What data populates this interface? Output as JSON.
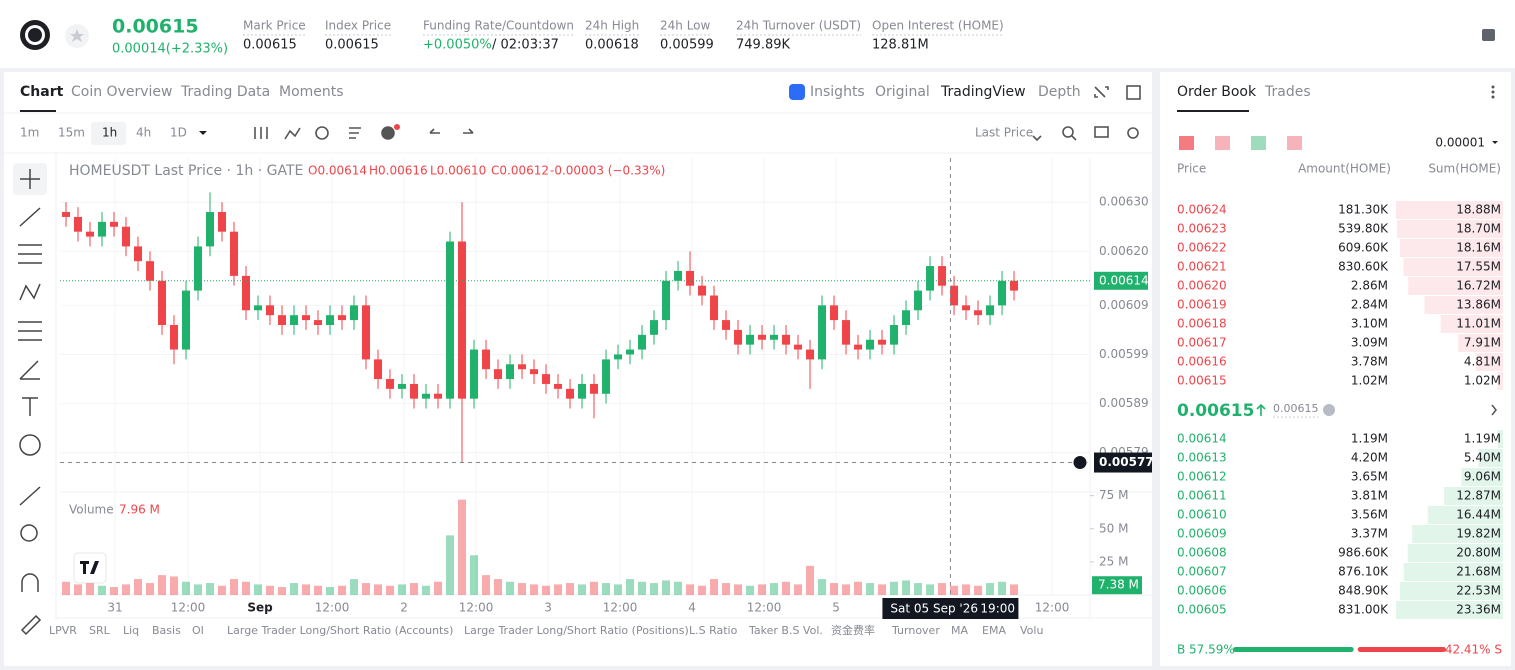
{
  "header": {
    "price": "0.00615",
    "change": "0.00014(+2.33%)",
    "stats": [
      {
        "label": "Mark Price",
        "value": "0.00615"
      },
      {
        "label": "Index Price",
        "value": "0.00615"
      },
      {
        "label": "Funding Rate/Countdown",
        "value": "+0.0050%",
        "extra": "/ 02:03:37"
      },
      {
        "label": "24h High",
        "value": "0.00618"
      },
      {
        "label": "24h Low",
        "value": "0.00599"
      },
      {
        "label": "24h Turnover (USDT)",
        "value": "749.89K"
      },
      {
        "label": "Open Interest (HOME)",
        "value": "128.81M"
      }
    ]
  },
  "tabs": [
    "Chart",
    "Coin Overview",
    "Trading Data",
    "Moments"
  ],
  "view_tabs": [
    "Insights",
    "Original",
    "TradingView",
    "Depth"
  ],
  "intervals": [
    "1m",
    "15m",
    "1h",
    "4h",
    "1D"
  ],
  "price_type": "Last Price",
  "indicators": [
    "LPVR",
    "SRL",
    "Liq",
    "Basis",
    "OI",
    "Large Trader Long/Short Ratio (Accounts)",
    "Large Trader Long/Short Ratio (Positions)",
    "L.S Ratio",
    "Taker B.S Vol.",
    "资金费率",
    "Turnover",
    "MA",
    "EMA",
    "Volu"
  ],
  "chart_data": {
    "type": "candlestick",
    "title": "HOMEUSDT Last Price · 1h · GATE",
    "legend": [
      "O0.00614",
      "H0.00616",
      "L0.00610",
      "C0.00612",
      "-0.00003 (−0.33%)"
    ],
    "up_color": "#20b26c",
    "down_color": "#ef454a",
    "grid": true,
    "xlim": [
      -0.5,
      85.33
    ],
    "xticks": [
      {
        "value": 4.08,
        "label": "31"
      },
      {
        "value": 10.17,
        "label": "12:00"
      },
      {
        "value": 16.17,
        "label": "Sep"
      },
      {
        "value": 22.17,
        "label": "12:00"
      },
      {
        "value": 28.17,
        "label": "2"
      },
      {
        "value": 34.17,
        "label": "12:00"
      },
      {
        "value": 40.17,
        "label": "3"
      },
      {
        "value": 46.17,
        "label": "12:00"
      },
      {
        "value": 52.17,
        "label": "4"
      },
      {
        "value": 58.17,
        "label": "12:00"
      },
      {
        "value": 64.17,
        "label": "5"
      },
      {
        "value": 82.17,
        "label": "12:00"
      }
    ],
    "ylim": [
      0.00571,
      0.00639
    ],
    "yticks": [
      {
        "value": 0.0063,
        "label": "0.00630"
      },
      {
        "value": 0.0062,
        "label": "0.00620"
      },
      {
        "value": 0.00609,
        "label": "0.00609"
      },
      {
        "value": 0.00599,
        "label": "0.00599"
      },
      {
        "value": 0.00589,
        "label": "0.00589"
      },
      {
        "value": 0.00579,
        "label": "0.00579"
      }
    ],
    "open": [
      0.00628,
      0.00627,
      0.00624,
      0.00623,
      0.00626,
      0.00625,
      0.00621,
      0.00618,
      0.00614,
      0.00605,
      0.006,
      0.00612,
      0.00621,
      0.00628,
      0.00624,
      0.00615,
      0.00608,
      0.00609,
      0.00607,
      0.00605,
      0.00607,
      0.00606,
      0.00605,
      0.00607,
      0.00606,
      0.00609,
      0.00598,
      0.00594,
      0.00592,
      0.00593,
      0.0059,
      0.00591,
      0.0059,
      0.00622,
      0.0059,
      0.006,
      0.00596,
      0.00594,
      0.00597,
      0.00596,
      0.00595,
      0.00593,
      0.00592,
      0.0059,
      0.00593,
      0.00591,
      0.00598,
      0.00599,
      0.006,
      0.00603,
      0.00606,
      0.00614,
      0.00616,
      0.00613,
      0.00611,
      0.00606,
      0.00604,
      0.00601,
      0.00603,
      0.00602,
      0.00603,
      0.00601,
      0.006,
      0.00598,
      0.00609,
      0.00606,
      0.00601,
      0.006,
      0.00602,
      0.00601,
      0.00605,
      0.00608,
      0.00612,
      0.00617,
      0.00613,
      0.00609,
      0.00608,
      0.00607,
      0.00609,
      0.00614
    ],
    "high": [
      0.0063,
      0.00629,
      0.00626,
      0.00628,
      0.00628,
      0.00627,
      0.00623,
      0.0062,
      0.00616,
      0.00607,
      0.00614,
      0.00623,
      0.00632,
      0.0063,
      0.00626,
      0.00617,
      0.00611,
      0.00611,
      0.00609,
      0.00609,
      0.00609,
      0.00608,
      0.00609,
      0.00609,
      0.00611,
      0.00611,
      0.006,
      0.00596,
      0.00595,
      0.00595,
      0.00593,
      0.00593,
      0.00624,
      0.0063,
      0.00602,
      0.00602,
      0.00598,
      0.00599,
      0.00599,
      0.00598,
      0.00597,
      0.00595,
      0.00594,
      0.00595,
      0.00595,
      0.006,
      0.00601,
      0.00602,
      0.00605,
      0.00608,
      0.00616,
      0.00618,
      0.0062,
      0.00615,
      0.00613,
      0.00608,
      0.00606,
      0.00605,
      0.00605,
      0.00605,
      0.00605,
      0.00603,
      0.00602,
      0.00611,
      0.00611,
      0.00608,
      0.00603,
      0.00604,
      0.00604,
      0.00607,
      0.0061,
      0.00614,
      0.00619,
      0.00619,
      0.00615,
      0.00611,
      0.0061,
      0.00611,
      0.00616,
      0.00616
    ],
    "low": [
      0.00625,
      0.00622,
      0.00621,
      0.00621,
      0.00623,
      0.00619,
      0.00616,
      0.00612,
      0.00603,
      0.00597,
      0.00598,
      0.0061,
      0.00619,
      0.00622,
      0.00613,
      0.00606,
      0.00606,
      0.00605,
      0.00603,
      0.00603,
      0.00604,
      0.00603,
      0.00603,
      0.00604,
      0.00604,
      0.00596,
      0.00592,
      0.0059,
      0.0059,
      0.00588,
      0.00588,
      0.00588,
      0.00588,
      0.00577,
      0.00588,
      0.00594,
      0.00592,
      0.00592,
      0.00594,
      0.00593,
      0.00591,
      0.0059,
      0.00588,
      0.00588,
      0.00586,
      0.00589,
      0.00596,
      0.00597,
      0.00598,
      0.00601,
      0.00604,
      0.00612,
      0.00611,
      0.00609,
      0.00604,
      0.00602,
      0.00599,
      0.00599,
      0.006,
      0.006,
      0.00599,
      0.00598,
      0.00592,
      0.00596,
      0.00604,
      0.00599,
      0.00598,
      0.00598,
      0.00599,
      0.00599,
      0.00603,
      0.00606,
      0.0061,
      0.00611,
      0.00607,
      0.00606,
      0.00605,
      0.00605,
      0.00607,
      0.0061
    ],
    "close": [
      0.00627,
      0.00624,
      0.00623,
      0.00626,
      0.00625,
      0.00621,
      0.00618,
      0.00614,
      0.00605,
      0.006,
      0.00612,
      0.00621,
      0.00628,
      0.00624,
      0.00615,
      0.00608,
      0.00609,
      0.00607,
      0.00605,
      0.00607,
      0.00606,
      0.00605,
      0.00607,
      0.00606,
      0.00609,
      0.00598,
      0.00594,
      0.00592,
      0.00593,
      0.0059,
      0.00591,
      0.0059,
      0.00622,
      0.0059,
      0.006,
      0.00596,
      0.00594,
      0.00597,
      0.00596,
      0.00595,
      0.00593,
      0.00592,
      0.0059,
      0.00593,
      0.00591,
      0.00598,
      0.00599,
      0.006,
      0.00603,
      0.00606,
      0.00614,
      0.00616,
      0.00613,
      0.00611,
      0.00606,
      0.00604,
      0.00601,
      0.00603,
      0.00602,
      0.00603,
      0.00601,
      0.006,
      0.00598,
      0.00609,
      0.00606,
      0.00601,
      0.006,
      0.00602,
      0.00601,
      0.00605,
      0.00608,
      0.00612,
      0.00617,
      0.00613,
      0.00609,
      0.00608,
      0.00607,
      0.00609,
      0.00614,
      0.00612
    ],
    "last_price": {
      "value": 0.00614,
      "label": "0.00614"
    },
    "crosshair": {
      "x": 73.7,
      "price": {
        "value": 0.00577,
        "label": "0.00577"
      },
      "date": "Sat 05 Sep '26",
      "time": "19:00"
    },
    "volume": {
      "label": "Volume",
      "value_label": "7.96 M",
      "ylim": [
        0,
        77
      ],
      "yticks": [
        {
          "value": 25,
          "label": "25 M"
        },
        {
          "value": 50,
          "label": "50 M"
        },
        {
          "value": 75,
          "label": "75 M"
        }
      ],
      "last": {
        "value": 7.38,
        "label": "7.38 M"
      },
      "values": [
        10,
        8,
        9,
        7,
        6,
        8,
        12,
        9,
        15,
        14,
        10,
        8,
        9,
        7,
        12,
        10,
        8,
        7,
        6,
        9,
        8,
        7,
        6,
        7,
        12,
        9,
        8,
        7,
        8,
        9,
        7,
        10,
        45,
        72,
        30,
        15,
        12,
        10,
        9,
        8,
        7,
        8,
        9,
        8,
        10,
        9,
        8,
        12,
        10,
        9,
        11,
        10,
        8,
        7,
        12,
        9,
        8,
        7,
        8,
        9,
        10,
        8,
        22,
        12,
        9,
        8,
        10,
        9,
        8,
        10,
        11,
        9,
        8,
        9,
        7,
        8,
        7,
        9,
        10,
        7.96
      ]
    }
  },
  "order_book": {
    "tabs": [
      "Order Book",
      "Trades"
    ],
    "precision": "0.00001",
    "columns": [
      "Price",
      "Amount(HOME)",
      "Sum(HOME)"
    ],
    "asks": [
      {
        "price": "0.00624",
        "amount": "181.30K",
        "sum": {
          "value": 18.88,
          "label": "18.88M"
        }
      },
      {
        "price": "0.00623",
        "amount": "539.80K",
        "sum": {
          "value": 18.7,
          "label": "18.70M"
        }
      },
      {
        "price": "0.00622",
        "amount": "609.60K",
        "sum": {
          "value": 18.16,
          "label": "18.16M"
        }
      },
      {
        "price": "0.00621",
        "amount": "830.60K",
        "sum": {
          "value": 17.55,
          "label": "17.55M"
        }
      },
      {
        "price": "0.00620",
        "amount": "2.86M",
        "sum": {
          "value": 16.72,
          "label": "16.72M"
        }
      },
      {
        "price": "0.00619",
        "amount": "2.84M",
        "sum": {
          "value": 13.86,
          "label": "13.86M"
        }
      },
      {
        "price": "0.00618",
        "amount": "3.10M",
        "sum": {
          "value": 11.01,
          "label": "11.01M"
        }
      },
      {
        "price": "0.00617",
        "amount": "3.09M",
        "sum": {
          "value": 7.91,
          "label": "7.91M"
        }
      },
      {
        "price": "0.00616",
        "amount": "3.78M",
        "sum": {
          "value": 4.81,
          "label": "4.81M"
        }
      },
      {
        "price": "0.00615",
        "amount": "1.02M",
        "sum": {
          "value": 1.02,
          "label": "1.02M"
        }
      }
    ],
    "mid": {
      "price": "0.00615",
      "mark": "0.00615"
    },
    "bids": [
      {
        "price": "0.00614",
        "amount": "1.19M",
        "sum": {
          "value": 1.19,
          "label": "1.19M"
        }
      },
      {
        "price": "0.00613",
        "amount": "4.20M",
        "sum": {
          "value": 5.4,
          "label": "5.40M"
        }
      },
      {
        "price": "0.00612",
        "amount": "3.65M",
        "sum": {
          "value": 9.06,
          "label": "9.06M"
        }
      },
      {
        "price": "0.00611",
        "amount": "3.81M",
        "sum": {
          "value": 12.87,
          "label": "12.87M"
        }
      },
      {
        "price": "0.00610",
        "amount": "3.56M",
        "sum": {
          "value": 16.44,
          "label": "16.44M"
        }
      },
      {
        "price": "0.00609",
        "amount": "3.37M",
        "sum": {
          "value": 19.82,
          "label": "19.82M"
        }
      },
      {
        "price": "0.00608",
        "amount": "986.60K",
        "sum": {
          "value": 20.8,
          "label": "20.80M"
        }
      },
      {
        "price": "0.00607",
        "amount": "876.10K",
        "sum": {
          "value": 21.68,
          "label": "21.68M"
        }
      },
      {
        "price": "0.00606",
        "amount": "848.90K",
        "sum": {
          "value": 22.53,
          "label": "22.53M"
        }
      },
      {
        "price": "0.00605",
        "amount": "831.00K",
        "sum": {
          "value": 23.36,
          "label": "23.36M"
        }
      }
    ],
    "ratio": {
      "buy": {
        "value": 57.59,
        "label": "B 57.59%"
      },
      "sell": {
        "value": 42.41,
        "label": "42.41% S"
      }
    }
  }
}
